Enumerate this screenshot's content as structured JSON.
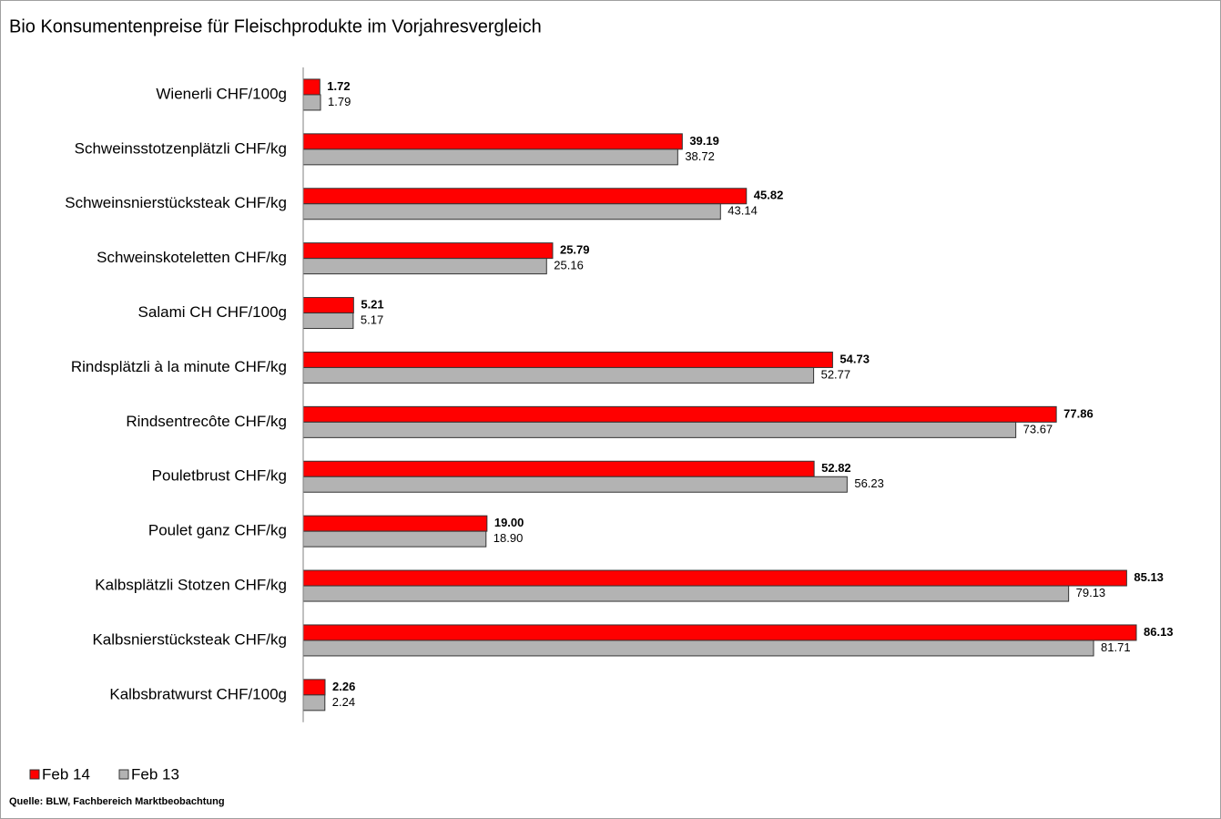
{
  "chart_data": {
    "type": "bar",
    "orientation": "horizontal",
    "title": "Bio Konsumentenpreise für Fleischprodukte im Vorjahresvergleich",
    "source": "Quelle: BLW, Fachbereich Marktbeobachtung",
    "categories": [
      "Wienerli CHF/100g",
      "Schweinsstotzenplätzli CHF/kg",
      "Schweinsnierstücksteak CHF/kg",
      "Schweinskoteletten CHF/kg",
      "Salami CH CHF/100g",
      "Rindsplätzli à la minute CHF/kg",
      "Rindsentrecôte CHF/kg",
      "Pouletbrust CHF/kg",
      "Poulet ganz CHF/kg",
      "Kalbsplätzli Stotzen CHF/kg",
      "Kalbsnierstücksteak CHF/kg",
      "Kalbsbratwurst CHF/100g"
    ],
    "series": [
      {
        "name": "Feb 14",
        "color": "#ff0000",
        "values": [
          1.72,
          39.19,
          45.82,
          25.79,
          5.21,
          54.73,
          77.86,
          52.82,
          19.0,
          85.13,
          86.13,
          2.26
        ],
        "value_labels": [
          "1.72",
          "39.19",
          "45.82",
          "25.79",
          "5.21",
          "54.73",
          "77.86",
          "52.82",
          "19.00",
          "85.13",
          "86.13",
          "2.26"
        ]
      },
      {
        "name": "Feb 13",
        "color": "#b3b3b3",
        "values": [
          1.79,
          38.72,
          43.14,
          25.16,
          5.17,
          52.77,
          73.67,
          56.23,
          18.9,
          79.13,
          81.71,
          2.24
        ],
        "value_labels": [
          "1.79",
          "38.72",
          "43.14",
          "25.16",
          "5.17",
          "52.77",
          "73.67",
          "56.23",
          "18.90",
          "79.13",
          "81.71",
          "2.24"
        ]
      }
    ]
  }
}
